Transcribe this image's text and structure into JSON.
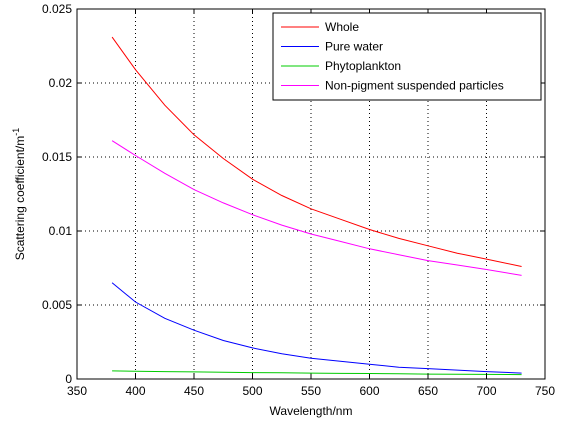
{
  "chart_data": {
    "type": "line",
    "title": "",
    "xlabel": "Wavelength/nm",
    "ylabel": "Scattering coefficient/m",
    "ylabel_superscript": "-1",
    "xlim": [
      350,
      750
    ],
    "ylim": [
      0,
      0.025
    ],
    "xticks": [
      350,
      400,
      450,
      500,
      550,
      600,
      650,
      700,
      750
    ],
    "xtick_labels": [
      "350",
      "400",
      "450",
      "500",
      "550",
      "600",
      "650",
      "700",
      "750"
    ],
    "yticks": [
      0,
      0.005,
      0.01,
      0.015,
      0.02,
      0.025
    ],
    "ytick_labels": [
      "0",
      "0.005",
      "0.01",
      "0.015",
      "0.02",
      "0.025"
    ],
    "grid": true,
    "legend_position": "top-right",
    "x": [
      380,
      400,
      425,
      450,
      475,
      500,
      525,
      550,
      575,
      600,
      625,
      650,
      675,
      700,
      730
    ],
    "series": [
      {
        "name": "Whole",
        "color": "#ff0000",
        "values": [
          0.0231,
          0.0209,
          0.0185,
          0.0165,
          0.0149,
          0.0135,
          0.0124,
          0.0115,
          0.0108,
          0.0101,
          0.0095,
          0.009,
          0.0085,
          0.0081,
          0.0076
        ]
      },
      {
        "name": "Pure water",
        "color": "#0000ff",
        "values": [
          0.0065,
          0.0052,
          0.0041,
          0.0033,
          0.0026,
          0.0021,
          0.0017,
          0.0014,
          0.0012,
          0.001,
          0.0008,
          0.0007,
          0.0006,
          0.0005,
          0.0004
        ]
      },
      {
        "name": "Phytoplankton",
        "color": "#00cc00",
        "values": [
          0.00055,
          0.00052,
          0.0005,
          0.00048,
          0.00045,
          0.00043,
          0.00042,
          0.0004,
          0.00038,
          0.00037,
          0.00035,
          0.00033,
          0.00032,
          0.00031,
          0.0003
        ]
      },
      {
        "name": "Non-pigment suspended particles",
        "color": "#ff00ff",
        "values": [
          0.0161,
          0.0151,
          0.0139,
          0.0128,
          0.0119,
          0.0111,
          0.0104,
          0.0098,
          0.0093,
          0.0088,
          0.0084,
          0.008,
          0.0077,
          0.0074,
          0.007
        ]
      }
    ]
  }
}
